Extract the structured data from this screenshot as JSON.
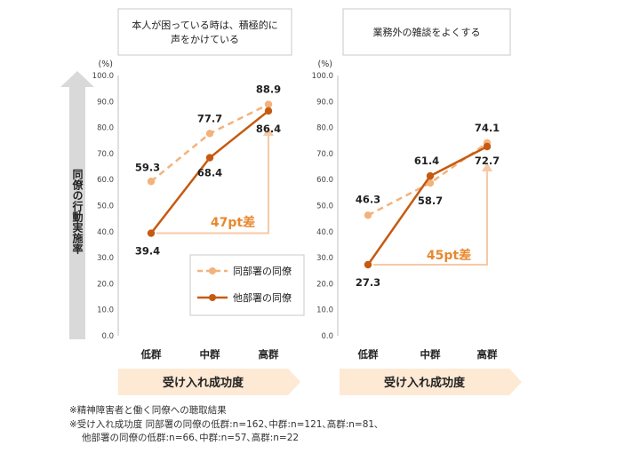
{
  "yaxis_label": "同僚の行動実施率",
  "xaxis_banner": "受け入れ成功度",
  "legend": {
    "same_dept": "同部署の同僚",
    "other_dept": "他部署の同僚"
  },
  "colors": {
    "same_dept": "#f3b27c",
    "other_dept": "#c65a11",
    "gap_arrow": "#f7c9a5",
    "gap_text": "#e8882f",
    "banner": "#fde9d4",
    "yaxis_arrow": "#d9d9d9"
  },
  "chart_data": [
    {
      "type": "line",
      "title": "本人が困っている時は、積極的に声をかけている",
      "unit_label": "(%)",
      "categories": [
        "低群",
        "中群",
        "高群"
      ],
      "ylim": [
        0,
        100
      ],
      "yticks": [
        "0.0",
        "10.0",
        "20.0",
        "30.0",
        "40.0",
        "50.0",
        "60.0",
        "70.0",
        "80.0",
        "90.0",
        "100.0"
      ],
      "series": [
        {
          "name": "同部署の同僚",
          "style": "dashed",
          "values": [
            59.3,
            77.7,
            88.9
          ],
          "labels": [
            "59.3",
            "77.7",
            "88.9"
          ]
        },
        {
          "name": "他部署の同僚",
          "style": "solid",
          "values": [
            39.4,
            68.4,
            86.4
          ],
          "labels": [
            "39.4",
            "68.4",
            "86.4"
          ]
        }
      ],
      "gap_annotation": "47pt差",
      "legend_position": "bottom-right",
      "grid": false
    },
    {
      "type": "line",
      "title": "業務外の雑談をよくする",
      "unit_label": "(%)",
      "categories": [
        "低群",
        "中群",
        "高群"
      ],
      "ylim": [
        0,
        100
      ],
      "yticks": [
        "0.0",
        "10.0",
        "20.0",
        "30.0",
        "40.0",
        "50.0",
        "60.0",
        "70.0",
        "80.0",
        "90.0",
        "100.0"
      ],
      "series": [
        {
          "name": "同部署の同僚",
          "style": "dashed",
          "values": [
            46.3,
            58.7,
            74.1
          ],
          "labels": [
            "46.3",
            "58.7",
            "74.1"
          ]
        },
        {
          "name": "他部署の同僚",
          "style": "solid",
          "values": [
            27.3,
            61.4,
            72.7
          ],
          "labels": [
            "27.3",
            "61.4",
            "72.7"
          ]
        }
      ],
      "gap_annotation": "45pt差",
      "grid": false
    }
  ],
  "footnotes": [
    "※精神障害者と働く同僚への聴取結果",
    "※受け入れ成功度 同部署の同僚の低群:n=162､中群:n=121､高群:n=81､",
    "他部署の同僚の低群:n=66､中群:n=57､高群:n=22"
  ]
}
